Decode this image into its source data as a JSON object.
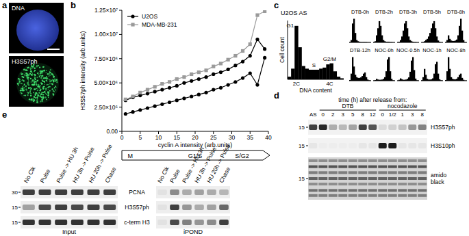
{
  "panel_labels": [
    "a",
    "b",
    "c",
    "d",
    "e"
  ],
  "panels": {
    "a": {
      "images": [
        {
          "label": "DNA"
        },
        {
          "label": "H3S57ph"
        }
      ]
    },
    "d": {
      "header": "time (h) after release from:",
      "first_lane": "AS",
      "groups": [
        {
          "label": "DTB",
          "lanes": [
            "0",
            "2",
            "3",
            "5",
            "8",
            "12"
          ]
        },
        {
          "label": "nocodazole",
          "lanes": [
            "0",
            "1/2",
            "1",
            "3",
            "8"
          ]
        }
      ],
      "rows": [
        {
          "label": "H3S57ph",
          "marker": "15",
          "intensity": [
            0.8,
            0.9,
            0.3,
            0.25,
            0.35,
            0.8,
            0.7,
            0.1,
            0.15,
            0.2,
            0.4,
            0.5
          ]
        },
        {
          "label": "H3S10ph",
          "marker": "15",
          "intensity": [
            0.05,
            0.02,
            0.02,
            0.02,
            0.02,
            0.05,
            0.05,
            0.95,
            0.95,
            0.05,
            0.05,
            0.05
          ]
        },
        {
          "label": "amido black",
          "marker": "15",
          "intensity": [
            0.8,
            0.8,
            0.8,
            0.8,
            0.8,
            0.8,
            0.8,
            0.8,
            0.8,
            0.8,
            0.8,
            0.8
          ]
        }
      ]
    },
    "e": {
      "lanes": [
        "No Clk",
        "Pulse",
        "Pulse -> HU 3h",
        "HU 3h -> Pulse",
        "HU 20h -> Pulse",
        "Chase"
      ],
      "rows": [
        {
          "label": "PCNA",
          "marker": "30"
        },
        {
          "label": "H3S57ph",
          "marker": "15"
        },
        {
          "label": "c-term H3",
          "marker": "15"
        }
      ],
      "blots": [
        {
          "label": "Input",
          "intensity": [
            [
              0.8,
              0.8,
              0.8,
              0.8,
              0.8,
              0.8
            ],
            [
              0.35,
              0.75,
              0.8,
              0.75,
              0.8,
              0.75
            ],
            [
              0.85,
              0.85,
              0.85,
              0.85,
              0.85,
              0.85
            ]
          ]
        },
        {
          "label": "iPOND",
          "intensity": [
            [
              0.05,
              0.45,
              0.3,
              0.35,
              0.3,
              0.25
            ],
            [
              0.05,
              0.8,
              0.4,
              0.3,
              0.35,
              0.6
            ],
            [
              0.05,
              0.75,
              0.5,
              0.4,
              0.45,
              0.8
            ]
          ]
        }
      ]
    }
  },
  "chart_data": [
    {
      "type": "line",
      "x_label": "cyclin A intensity (arb.units)",
      "y_label": "H3S57ph intensity (arb.units)",
      "annotations": [
        "M",
        "G1/S",
        "S/G2"
      ],
      "x": [
        1,
        3,
        5,
        7,
        9,
        11,
        13,
        15,
        17,
        19,
        21,
        23,
        25,
        27,
        29,
        31,
        33,
        35,
        37,
        39
      ],
      "series": [
        {
          "name": "U2OS",
          "color": "#000000",
          "marker": "circle",
          "values": [
            3200000,
            3500000,
            3700000,
            3900000,
            4100000,
            4300000,
            4500000,
            4700000,
            5000000,
            5200000,
            5400000,
            5600000,
            5900000,
            6100000,
            6400000,
            6800000,
            7200000,
            7800000,
            9500000,
            8500000
          ]
        },
        {
          "name": null,
          "color": "#000000",
          "marker": "circle",
          "values": [
            1800000,
            2000000,
            2200000,
            2400000,
            2600000,
            2800000,
            3000000,
            3200000,
            3400000,
            3600000,
            3800000,
            4000000,
            4300000,
            4500000,
            4800000,
            5100000,
            5500000,
            6000000,
            4800000,
            7600000
          ]
        },
        {
          "name": "MDA-MB-231",
          "color": "#9a9a9a",
          "marker": "square",
          "values": [
            3300000,
            3600000,
            4000000,
            4300000,
            4600000,
            4900000,
            5100000,
            5400000,
            5600000,
            5900000,
            6100000,
            6300000,
            6700000,
            7000000,
            7400000,
            7800000,
            8300000,
            9000000,
            12000000,
            12400000
          ]
        }
      ],
      "xlim": [
        0,
        40
      ],
      "ylim": [
        0,
        12500000
      ],
      "xticks": [
        0,
        5,
        10,
        15,
        20,
        25,
        30,
        35,
        40
      ],
      "yticks": [
        {
          "value": 0,
          "label": "0.00"
        },
        {
          "value": 2500000,
          "label": "2.50×10⁶"
        },
        {
          "value": 5000000,
          "label": "5.00×10⁶"
        },
        {
          "value": 7500000,
          "label": "7.50×10⁶"
        },
        {
          "value": 10000000,
          "label": "1.00×10⁷"
        },
        {
          "value": 12500000,
          "label": "1.25×10⁷"
        }
      ],
      "grid": false,
      "legend": "upper left"
    },
    {
      "type": "histogram",
      "x_label": "DNA content",
      "y_label": "Cell count",
      "annotations": [
        "G1",
        "S",
        "G2/M",
        "2C",
        "4C"
      ],
      "tick_labels": false,
      "color": "#000000",
      "bins": [
        0,
        1,
        2,
        3,
        4,
        5,
        6,
        7,
        8,
        9,
        10,
        11,
        12,
        13,
        14,
        15,
        16
      ],
      "xlim": [
        0,
        16
      ],
      "ylim": [
        0,
        110
      ],
      "series": [
        {
          "name": "U2OS AS",
          "values": [
            5,
            20,
            100,
            60,
            25,
            20,
            18,
            18,
            18,
            20,
            22,
            28,
            30,
            15,
            5,
            2
          ]
        },
        {
          "name": "DTB-0h",
          "values": [
            2,
            10,
            80,
            100,
            40,
            10,
            5,
            3,
            2,
            2,
            2,
            2,
            2,
            1,
            1,
            1
          ]
        },
        {
          "name": "DTB-2h",
          "values": [
            2,
            5,
            30,
            60,
            90,
            70,
            30,
            10,
            5,
            3,
            3,
            3,
            2,
            2,
            1,
            1
          ]
        },
        {
          "name": "DTB-3h",
          "values": [
            2,
            3,
            10,
            25,
            50,
            80,
            90,
            60,
            25,
            10,
            5,
            3,
            2,
            2,
            1,
            1
          ]
        },
        {
          "name": "DTB-5h",
          "values": [
            1,
            2,
            5,
            10,
            15,
            25,
            40,
            60,
            80,
            90,
            60,
            25,
            8,
            3,
            1,
            1
          ]
        },
        {
          "name": "DTB-8h",
          "values": [
            2,
            10,
            30,
            15,
            8,
            6,
            6,
            8,
            12,
            30,
            70,
            100,
            50,
            10,
            2,
            1
          ]
        },
        {
          "name": "DTB-12h",
          "values": [
            3,
            30,
            100,
            60,
            25,
            15,
            12,
            12,
            14,
            20,
            30,
            35,
            15,
            5,
            2,
            1
          ]
        },
        {
          "name": "NOC-0h",
          "values": [
            1,
            3,
            8,
            5,
            4,
            4,
            5,
            8,
            15,
            40,
            90,
            100,
            40,
            8,
            2,
            1
          ]
        },
        {
          "name": "NOC-0.5h",
          "values": [
            1,
            4,
            10,
            6,
            4,
            4,
            5,
            8,
            14,
            38,
            85,
            100,
            45,
            9,
            2,
            1
          ]
        },
        {
          "name": "NOC-1h",
          "values": [
            2,
            15,
            50,
            25,
            8,
            5,
            5,
            6,
            10,
            30,
            70,
            80,
            30,
            6,
            2,
            1
          ]
        },
        {
          "name": "NOC-8h",
          "values": [
            3,
            40,
            100,
            50,
            15,
            8,
            6,
            6,
            8,
            15,
            25,
            30,
            12,
            4,
            1,
            1
          ]
        }
      ]
    }
  ]
}
